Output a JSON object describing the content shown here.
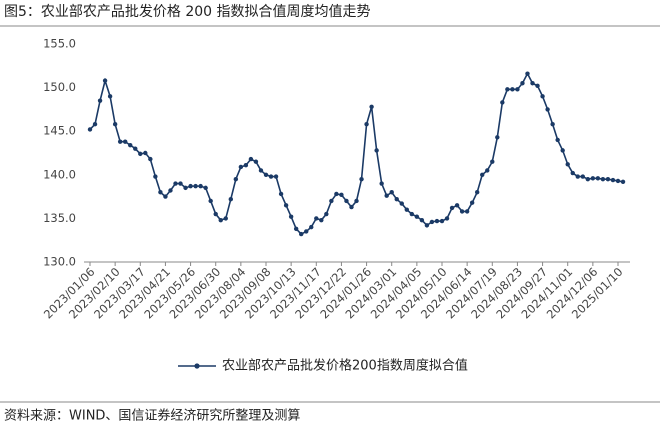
{
  "chart_data": {
    "type": "line",
    "title": "图5：农业部农产品批发价格 200 指数拟合值周度均值走势",
    "source": "资料来源：WIND、国信证券经济研究所整理及测算",
    "categories": [
      "2023/01/06",
      null,
      null,
      null,
      null,
      "2023/02/10",
      null,
      null,
      null,
      null,
      "2023/03/17",
      null,
      null,
      null,
      null,
      "2023/04/21",
      null,
      null,
      null,
      null,
      "2023/05/26",
      null,
      null,
      null,
      null,
      "2023/06/30",
      null,
      null,
      null,
      null,
      "2023/08/04",
      null,
      null,
      null,
      null,
      "2023/09/08",
      null,
      null,
      null,
      null,
      "2023/10/13",
      null,
      null,
      null,
      null,
      "2023/11/17",
      null,
      null,
      null,
      null,
      "2023/12/22",
      null,
      null,
      null,
      null,
      "2024/01/26",
      null,
      null,
      null,
      null,
      "2024/03/01",
      null,
      null,
      null,
      null,
      "2024/04/05",
      null,
      null,
      null,
      null,
      "2024/05/10",
      null,
      null,
      null,
      null,
      "2024/06/14",
      null,
      null,
      null,
      null,
      "2024/07/19",
      null,
      null,
      null,
      null,
      "2024/08/23",
      null,
      null,
      null,
      null,
      "2024/09/27",
      null,
      null,
      null,
      null,
      "2024/11/01",
      null,
      null,
      null,
      null,
      "2024/12/06",
      null,
      null,
      null,
      null,
      "2025/01/10",
      null
    ],
    "series": [
      {
        "name": "农业部农产品批发价格200指数周度拟合值",
        "color": "#1b3a66",
        "values": [
          145.2,
          145.8,
          148.5,
          150.8,
          149.0,
          145.8,
          143.8,
          143.8,
          143.4,
          143.0,
          142.4,
          142.5,
          141.8,
          139.8,
          138.0,
          137.5,
          138.2,
          139.0,
          139.0,
          138.5,
          138.7,
          138.7,
          138.7,
          138.5,
          137.0,
          135.5,
          134.8,
          135.0,
          137.2,
          139.5,
          140.9,
          141.1,
          141.8,
          141.5,
          140.5,
          140.0,
          139.8,
          139.8,
          137.8,
          136.5,
          135.2,
          133.8,
          133.2,
          133.5,
          134.0,
          135.0,
          134.8,
          135.5,
          137.0,
          137.8,
          137.7,
          137.0,
          136.3,
          137.0,
          139.5,
          145.8,
          147.8,
          142.8,
          139.0,
          137.6,
          138.0,
          137.2,
          136.7,
          136.0,
          135.5,
          135.2,
          134.8,
          134.2,
          134.6,
          134.7,
          134.7,
          135.0,
          136.2,
          136.5,
          135.8,
          135.8,
          136.8,
          138.0,
          140.0,
          140.5,
          141.5,
          144.3,
          148.3,
          149.8,
          149.8,
          149.8,
          150.5,
          151.6,
          150.5,
          150.2,
          149.0,
          147.5,
          145.8,
          144.0,
          142.8,
          141.2,
          140.2,
          139.8,
          139.8,
          139.5,
          139.6,
          139.6,
          139.5,
          139.5,
          139.4,
          139.3,
          139.2
        ]
      }
    ],
    "ylim": [
      130,
      155
    ],
    "yticks": [
      {
        "value": 130,
        "label": "130.0"
      },
      {
        "value": 135,
        "label": "135.0"
      },
      {
        "value": 140,
        "label": "140.0"
      },
      {
        "value": 145,
        "label": "145.0"
      },
      {
        "value": 150,
        "label": "150.0"
      },
      {
        "value": 155,
        "label": "155.0"
      }
    ],
    "grid": false,
    "legend": "bottom"
  }
}
